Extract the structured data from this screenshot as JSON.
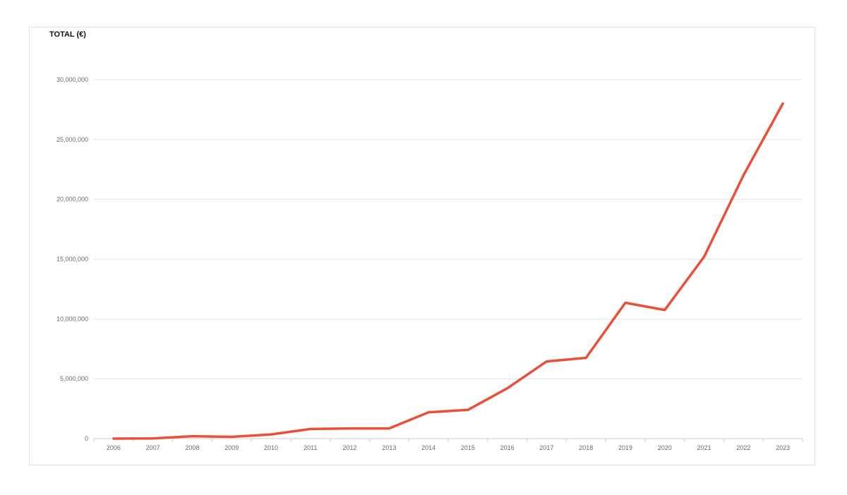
{
  "chart_data": {
    "type": "line",
    "title": "TOTAL (€)",
    "xlabel": "",
    "ylabel": "",
    "categories": [
      "2006",
      "2007",
      "2008",
      "2009",
      "2010",
      "2011",
      "2012",
      "2013",
      "2014",
      "2015",
      "2016",
      "2017",
      "2018",
      "2019",
      "2020",
      "2021",
      "2022",
      "2023"
    ],
    "series": [
      {
        "values": [
          0,
          20000,
          200000,
          150000,
          350000,
          800000,
          850000,
          850000,
          2200000,
          2400000,
          4200000,
          6450000,
          6750000,
          11350000,
          10750000,
          15200000,
          22000000,
          28000000
        ],
        "color": "#e8503a"
      }
    ],
    "ylim": [
      0,
      30000000
    ],
    "yticks": [
      {
        "value": 0,
        "label": "0"
      },
      {
        "value": 5000000,
        "label": "5,000,000"
      },
      {
        "value": 10000000,
        "label": "10,000,000"
      },
      {
        "value": 15000000,
        "label": "15,000,000"
      },
      {
        "value": 20000000,
        "label": "20,000,000"
      },
      {
        "value": 25000000,
        "label": "25,000,000"
      },
      {
        "value": 30000000,
        "label": "30,000,000"
      }
    ],
    "grid": true,
    "legend": "none"
  }
}
